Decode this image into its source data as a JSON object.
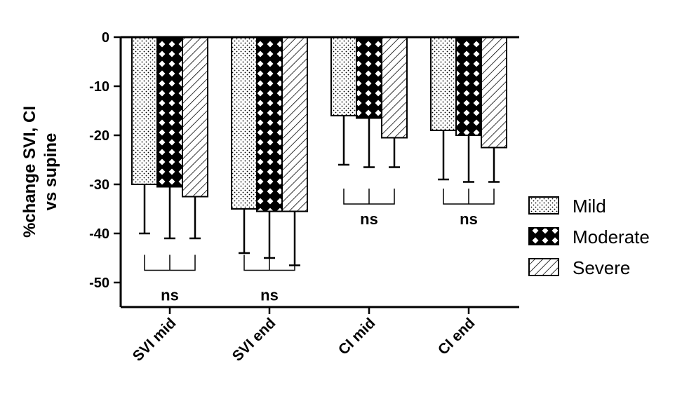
{
  "chart_data": {
    "type": "bar",
    "ylabel_lines": [
      "%change SVI, CI",
      "vs supine"
    ],
    "ylim": [
      -55,
      0
    ],
    "yticks": [
      0,
      -10,
      -20,
      -30,
      -40,
      -50
    ],
    "categories": [
      "SVI mid",
      "SVI end",
      "CI mid",
      "CI end"
    ],
    "series": [
      {
        "name": "Mild",
        "pattern": "dots",
        "values": [
          -30,
          -35,
          -16,
          -19
        ],
        "error_bars": [
          10,
          9,
          10,
          10
        ]
      },
      {
        "name": "Moderate",
        "pattern": "cross",
        "values": [
          -30.5,
          -35.5,
          -16.5,
          -20
        ],
        "error_bars": [
          10.5,
          9.5,
          10,
          9.5
        ]
      },
      {
        "name": "Severe",
        "pattern": "hatch",
        "values": [
          -32.5,
          -35.5,
          -20.5,
          -22.5
        ],
        "error_bars": [
          8.5,
          11,
          6,
          7
        ]
      }
    ],
    "annotations": [
      {
        "category": "SVI mid",
        "text": "ns",
        "bracket_y": -47.5,
        "text_y": -52.5
      },
      {
        "category": "SVI end",
        "text": "ns",
        "bracket_y": -47.5,
        "text_y": -52.5
      },
      {
        "category": "CI mid",
        "text": "ns",
        "bracket_y": -34,
        "text_y": -37
      },
      {
        "category": "CI end",
        "text": "ns",
        "bracket_y": -34,
        "text_y": -37
      }
    ],
    "legend_position": "right",
    "grid": false
  }
}
